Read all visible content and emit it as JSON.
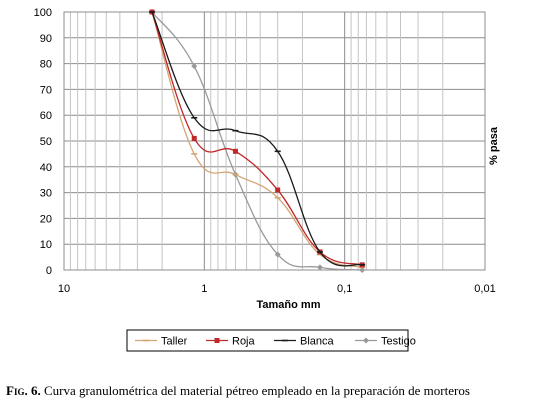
{
  "chart_data": {
    "type": "line",
    "xlabel": "Tamaño mm",
    "ylabel": "% pasa",
    "x_scale": "log",
    "x_reversed": true,
    "xlim": [
      10,
      0.01
    ],
    "ylim": [
      0,
      100
    ],
    "x_ticks": [
      10,
      1,
      0.1,
      0.01
    ],
    "x_tick_labels": [
      "10",
      "1",
      "0,1",
      "0,01"
    ],
    "y_ticks": [
      0,
      10,
      20,
      30,
      40,
      50,
      60,
      70,
      80,
      90,
      100
    ],
    "grid": true,
    "legend_position": "bottom",
    "series": [
      {
        "name": "Taller",
        "color": "#d4a574",
        "marker": "dash",
        "x": [
          2.36,
          1.18,
          0.6,
          0.3,
          0.15,
          0.075
        ],
        "y": [
          100,
          45,
          37,
          28,
          6,
          1
        ]
      },
      {
        "name": "Roja",
        "color": "#c0282a",
        "marker": "square",
        "x": [
          2.36,
          1.18,
          0.6,
          0.3,
          0.15,
          0.075
        ],
        "y": [
          100,
          51,
          46,
          31,
          7,
          2
        ]
      },
      {
        "name": "Blanca",
        "color": "#1a1a1a",
        "marker": "dash",
        "x": [
          2.36,
          1.18,
          0.6,
          0.3,
          0.15,
          0.075
        ],
        "y": [
          100,
          59,
          54,
          46,
          7,
          2
        ]
      },
      {
        "name": "Testigo",
        "color": "#9a9a9a",
        "marker": "diamond",
        "x": [
          2.36,
          1.18,
          0.6,
          0.3,
          0.15,
          0.075
        ],
        "y": [
          100,
          79,
          37,
          6,
          1,
          0
        ]
      }
    ]
  },
  "caption": {
    "label": "Fig. 6.",
    "text": "Curva granulométrica del material pétreo empleado en la preparación de morteros"
  }
}
